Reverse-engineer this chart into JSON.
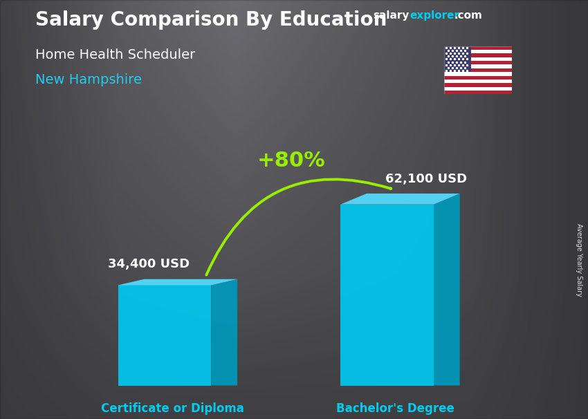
{
  "title_main": "Salary Comparison By Education",
  "title_sub": "Home Health Scheduler",
  "title_location": "New Hampshire",
  "categories": [
    "Certificate or Diploma",
    "Bachelor's Degree"
  ],
  "values": [
    34400,
    62100
  ],
  "value_labels": [
    "34,400 USD",
    "62,100 USD"
  ],
  "percent_change": "+80%",
  "bar_color_front": "#00C8F0",
  "bar_color_side": "#0099BB",
  "bar_color_top": "#55DDFF",
  "bar_color_side_light": "#33BBDD",
  "title_color": "#ffffff",
  "subtitle_color": "#ffffff",
  "location_color": "#22CCEE",
  "label_color": "#ffffff",
  "xlabel_color": "#00CCEE",
  "percent_color": "#99EE00",
  "arrow_color": "#99EE00",
  "watermark_salary": "salary",
  "watermark_explorer": "explorer",
  "watermark_com": ".com",
  "watermark_color_salary": "#ffffff",
  "watermark_color_explorer": "#00CCEE",
  "watermark_color_com": "#ffffff",
  "side_label": "Average Yearly Salary",
  "bg_gray": 0.47
}
